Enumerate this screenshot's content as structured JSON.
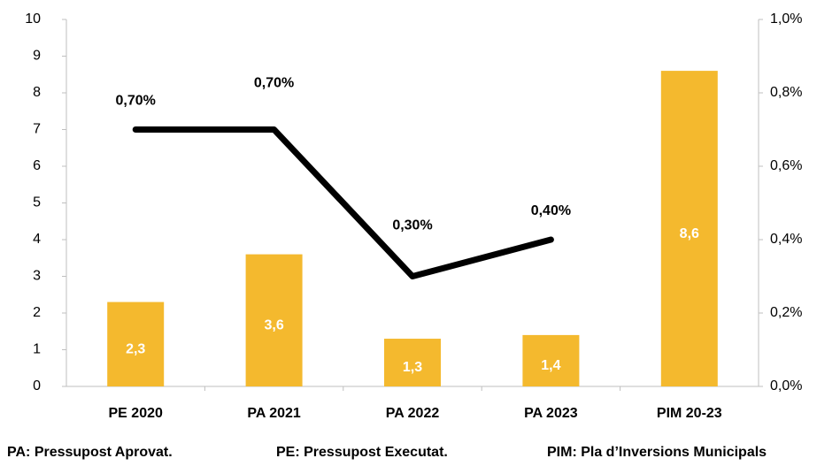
{
  "chart_data": {
    "type": "bar",
    "categories": [
      "PE 2020",
      "PA 2021",
      "PA 2022",
      "PA 2023",
      "PIM 20-23"
    ],
    "series": [
      {
        "type": "bar",
        "color": "#f4b92e",
        "values": [
          2.3,
          3.6,
          1.3,
          1.4,
          8.6
        ],
        "value_labels": [
          "2,3",
          "3,6",
          "1,3",
          "1,4",
          "8,6"
        ]
      },
      {
        "type": "line",
        "axis": "y2",
        "color": "#000000",
        "values": [
          0.7,
          0.7,
          0.3,
          0.4,
          null
        ],
        "value_labels": [
          "0,70%",
          "0,70%",
          "0,30%",
          "0,40%",
          null
        ]
      }
    ],
    "ylim": [
      0,
      10
    ],
    "yticks": [
      0,
      1,
      2,
      3,
      4,
      5,
      6,
      7,
      8,
      9,
      10
    ],
    "y2lim": [
      0,
      1
    ],
    "y2ticks": [
      {
        "value": 0,
        "label": "0,0%"
      },
      {
        "value": 0.2,
        "label": "0,2%"
      },
      {
        "value": 0.4,
        "label": "0,4%"
      },
      {
        "value": 0.6,
        "label": "0,6%"
      },
      {
        "value": 0.8,
        "label": "0,8%"
      },
      {
        "value": 1,
        "label": "1,0%"
      }
    ],
    "footnotes": [
      "PA: Pressupost Aprovat.",
      "PE: Pressupost Executat.",
      "PIM: Pla d’Inversions Municipals"
    ]
  }
}
